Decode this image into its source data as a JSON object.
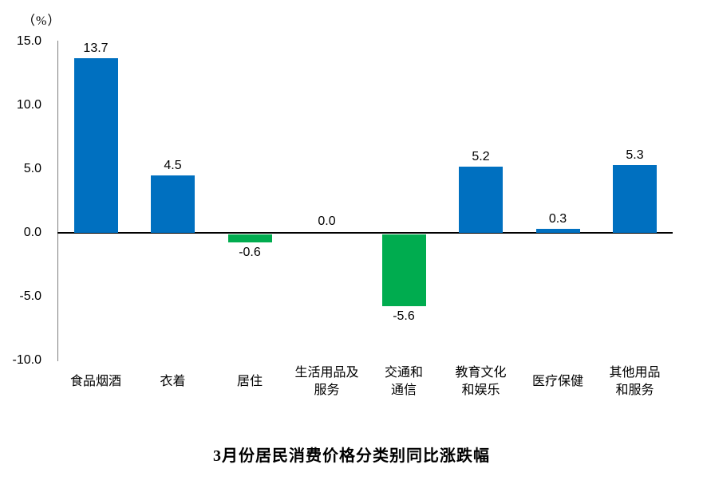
{
  "unit_label": "（%）",
  "chart_data": {
    "type": "bar",
    "title": "3月份居民消费价格分类别同比涨跌幅",
    "ylabel": "（%）",
    "xlabel": "",
    "categories": [
      "食品烟酒",
      "衣着",
      "居住",
      "生活用品及\n服务",
      "交通和\n通信",
      "教育文化\n和娱乐",
      "医疗保健",
      "其他用品\n和服务"
    ],
    "values": [
      13.7,
      4.5,
      -0.6,
      0.0,
      -5.6,
      5.2,
      0.3,
      5.3
    ],
    "value_labels": [
      "13.7",
      "4.5",
      "-0.6",
      "0.0",
      "-5.6",
      "5.2",
      "0.3",
      "5.3"
    ],
    "ylim": [
      -10.0,
      15.0
    ],
    "yticks": [
      15.0,
      10.0,
      5.0,
      0.0,
      -5.0,
      -10.0
    ],
    "ytick_labels": [
      "15.0",
      "10.0",
      "5.0",
      "0.0",
      "-5.0",
      "-10.0"
    ],
    "grid": false,
    "legend": "none",
    "positive_color": "#0070C0",
    "negative_color": "#00AC4F",
    "xaxis_line_color": "#000000",
    "yaxis_line_color": "#7f7f7f"
  }
}
